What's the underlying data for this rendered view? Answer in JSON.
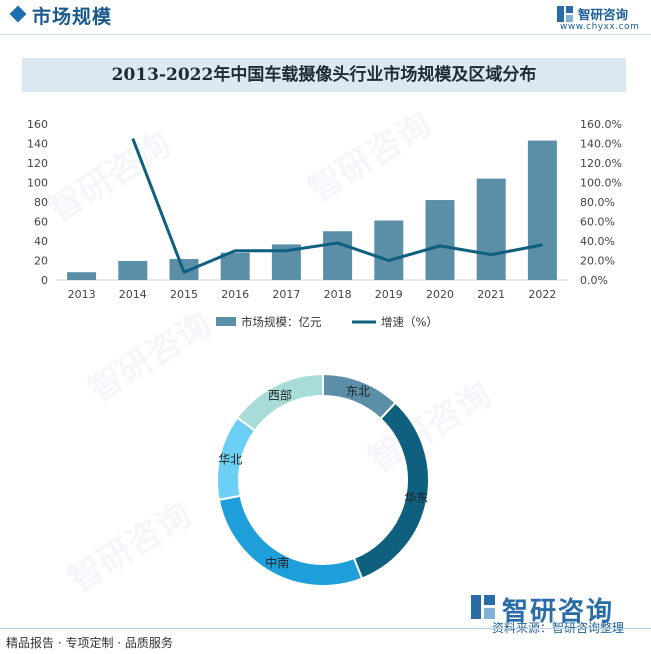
{
  "header": {
    "title": "市场规模",
    "logo_name": "智研咨询",
    "logo_url": "www.chyxx.com"
  },
  "chart_title": "2013-2022年中国车载摄像头行业市场规模及区域分布",
  "colors": {
    "bar": "#5b8fa8",
    "line": "#0f5f7f",
    "axis_text": "#444444",
    "donut": [
      "#5b8fa8",
      "#0f5f7f",
      "#1e9fd9",
      "#6ccff6",
      "#a8dcd9"
    ]
  },
  "chart_data": [
    {
      "type": "bar",
      "title": "",
      "categories": [
        "2013",
        "2014",
        "2015",
        "2016",
        "2017",
        "2018",
        "2019",
        "2020",
        "2021",
        "2022"
      ],
      "series": [
        {
          "name": "市场规模：亿元",
          "type": "bar",
          "axis": "left",
          "values": [
            8,
            19.5,
            21.5,
            28,
            36.5,
            50,
            61,
            82,
            104,
            143
          ]
        },
        {
          "name": "增速（%）",
          "type": "line",
          "axis": "right",
          "values": [
            null,
            1.45,
            0.08,
            0.3,
            0.3,
            0.38,
            0.2,
            0.35,
            0.26,
            0.36
          ]
        }
      ],
      "ylim_left": [
        0,
        160
      ],
      "yticks_left": [
        "0",
        "20",
        "40",
        "60",
        "80",
        "100",
        "120",
        "140",
        "160"
      ],
      "ylim_right": [
        0,
        1.6
      ],
      "yticks_right": [
        "0.0%",
        "20.0%",
        "40.0%",
        "60.0%",
        "80.0%",
        "100.0%",
        "120.0%",
        "140.0%",
        "160.0%"
      ],
      "grid": false,
      "legend": "bottom"
    },
    {
      "type": "pie",
      "subtype": "donut",
      "labels": [
        "东北",
        "华东",
        "中南",
        "华北",
        "西部"
      ],
      "values": [
        12,
        32,
        28,
        13,
        15
      ],
      "legend": "none"
    }
  ],
  "footer": {
    "left": "精品报告 · 专项定制 · 品质服务",
    "logo": "智研咨询",
    "source": "资料来源：智研咨询整理"
  }
}
